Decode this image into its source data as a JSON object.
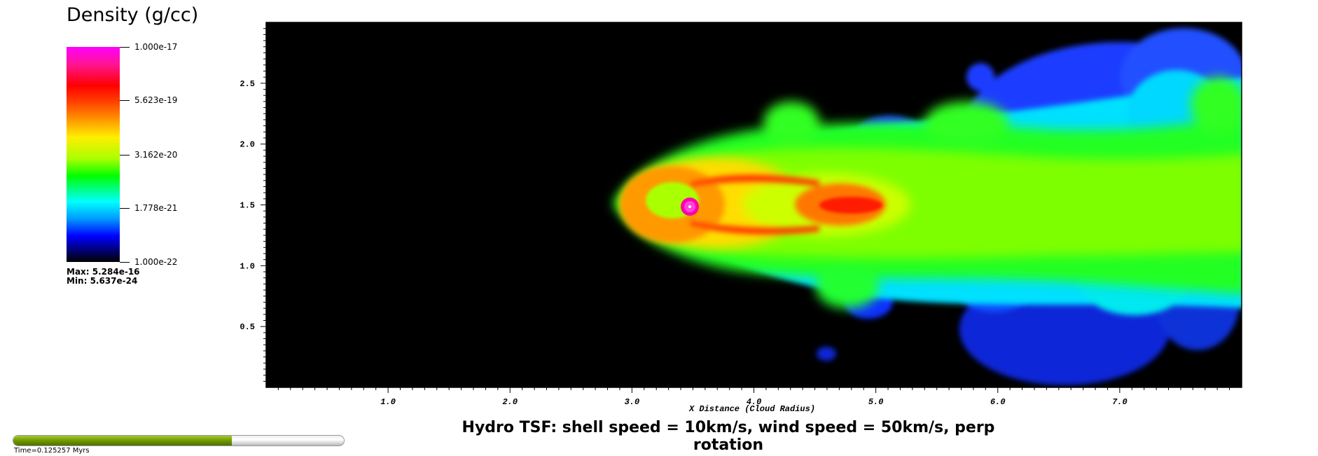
{
  "legend": {
    "title": "Density (g/cc)",
    "labels": [
      "1.000e-17",
      "5.623e-19",
      "3.162e-20",
      "1.778e-21",
      "1.000e-22"
    ],
    "max_label": "Max:  5.284e-16",
    "min_label": "Min:  5.637e-24"
  },
  "caption": "Hydro TSF: shell speed = 10km/s, wind speed = 50km/s, perp rotation",
  "time": {
    "label": "Time=0.125257 Myrs",
    "progress": 0.66
  },
  "chart_data": {
    "type": "heatmap",
    "title": "Hydro TSF: shell speed = 10km/s, wind speed = 50km/s, perp rotation",
    "xlabel": "X Distance (Cloud Radius)",
    "ylabel": "",
    "xlim": [
      0,
      8
    ],
    "ylim": [
      0,
      3
    ],
    "x_ticks": [
      "1.0",
      "2.0",
      "3.0",
      "4.0",
      "5.0",
      "6.0",
      "7.0"
    ],
    "y_ticks": [
      "0.5",
      "1.0",
      "1.5",
      "2.0",
      "2.5"
    ],
    "colorbar": {
      "label": "Density (g/cc)",
      "scale": "log",
      "range": [
        1e-22,
        1e-17
      ],
      "ticks": [
        "1.000e-17",
        "5.623e-19",
        "3.162e-20",
        "1.778e-21",
        "1.000e-22"
      ]
    },
    "features": [
      {
        "name": "core",
        "x": 3.5,
        "y": 1.5
      },
      {
        "name": "tail",
        "x_start": 2.7,
        "x_end": 8.0,
        "y_center": 1.5
      }
    ]
  }
}
